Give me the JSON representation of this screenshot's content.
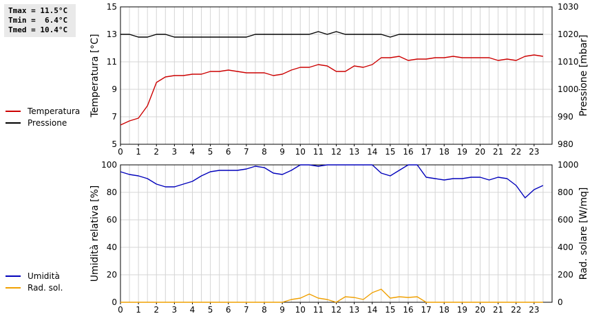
{
  "stats": {
    "tmax": "Tmax = 11.5°C",
    "tmin": "Tmin =  6.4°C",
    "tmed": "Tmed = 10.4°C"
  },
  "chart_data": [
    {
      "type": "line",
      "x_ticks": [
        "0",
        "1",
        "2",
        "3",
        "4",
        "5",
        "6",
        "7",
        "8",
        "9",
        "10",
        "11",
        "12",
        "13",
        "14",
        "15",
        "16",
        "17",
        "18",
        "19",
        "20",
        "21",
        "22",
        "23"
      ],
      "xlim": [
        0,
        24
      ],
      "ylabel_left": "Temperatura [°C]",
      "ylabel_right": "Pressione [mbar]",
      "ylim_left": [
        5,
        15
      ],
      "yticks_left": [
        "5",
        "7",
        "9",
        "11",
        "13",
        "15"
      ],
      "ylim_right": [
        980,
        1030
      ],
      "yticks_right": [
        "980",
        "990",
        "1000",
        "1010",
        "1020",
        "1030"
      ],
      "grid": true,
      "legend_position": "left",
      "series": [
        {
          "name": "Temperatura",
          "axis": "left",
          "color": "#cc0000",
          "x": [
            0,
            0.5,
            1,
            1.5,
            2,
            2.5,
            3,
            3.5,
            4,
            4.5,
            5,
            5.5,
            6,
            6.5,
            7,
            7.5,
            8,
            8.5,
            9,
            9.5,
            10,
            10.5,
            11,
            11.5,
            12,
            12.5,
            13,
            13.5,
            14,
            14.5,
            15,
            15.5,
            16,
            16.5,
            17,
            17.5,
            18,
            18.5,
            19,
            19.5,
            20,
            20.5,
            21,
            21.5,
            22,
            22.5,
            23,
            23.5
          ],
          "y": [
            6.4,
            6.7,
            6.9,
            7.8,
            9.5,
            9.9,
            10.0,
            10.0,
            10.1,
            10.1,
            10.3,
            10.3,
            10.4,
            10.3,
            10.2,
            10.2,
            10.2,
            10.0,
            10.1,
            10.4,
            10.6,
            10.6,
            10.8,
            10.7,
            10.3,
            10.3,
            10.7,
            10.6,
            10.8,
            11.3,
            11.3,
            11.4,
            11.1,
            11.2,
            11.2,
            11.3,
            11.3,
            11.4,
            11.3,
            11.3,
            11.3,
            11.3,
            11.1,
            11.2,
            11.1,
            11.4,
            11.5,
            11.4
          ]
        },
        {
          "name": "Pressione",
          "axis": "right",
          "color": "#000000",
          "x": [
            0,
            0.5,
            1,
            1.5,
            2,
            2.5,
            3,
            3.5,
            4,
            4.5,
            5,
            5.5,
            6,
            6.5,
            7,
            7.5,
            8,
            8.5,
            9,
            9.5,
            10,
            10.5,
            11,
            11.5,
            12,
            12.5,
            13,
            13.5,
            14,
            14.5,
            15,
            15.5,
            16,
            16.5,
            17,
            17.5,
            18,
            18.5,
            19,
            19.5,
            20,
            20.5,
            21,
            21.5,
            22,
            22.5,
            23,
            23.5
          ],
          "y": [
            1020,
            1020,
            1019,
            1019,
            1020,
            1020,
            1019,
            1019,
            1019,
            1019,
            1019,
            1019,
            1019,
            1019,
            1019,
            1020,
            1020,
            1020,
            1020,
            1020,
            1020,
            1020,
            1021,
            1020,
            1021,
            1020,
            1020,
            1020,
            1020,
            1020,
            1019,
            1020,
            1020,
            1020,
            1020,
            1020,
            1020,
            1020,
            1020,
            1020,
            1020,
            1020,
            1020,
            1020,
            1020,
            1020,
            1020,
            1020
          ]
        }
      ]
    },
    {
      "type": "line",
      "x_ticks": [
        "0",
        "1",
        "2",
        "3",
        "4",
        "5",
        "6",
        "7",
        "8",
        "9",
        "10",
        "11",
        "12",
        "13",
        "14",
        "15",
        "16",
        "17",
        "18",
        "19",
        "20",
        "21",
        "22",
        "23"
      ],
      "xlim": [
        0,
        24
      ],
      "ylabel_left": "Umidità relativa [%]",
      "ylabel_right": "Rad. solare [W/mq]",
      "ylim_left": [
        0,
        100
      ],
      "yticks_left": [
        "0",
        "20",
        "40",
        "60",
        "80",
        "100"
      ],
      "ylim_right": [
        0,
        1000
      ],
      "yticks_right": [
        "0",
        "200",
        "400",
        "600",
        "800",
        "1000"
      ],
      "grid": true,
      "legend_position": "left",
      "series": [
        {
          "name": "Umidità",
          "axis": "left",
          "color": "#0000bb",
          "x": [
            0,
            0.5,
            1,
            1.5,
            2,
            2.5,
            3,
            3.5,
            4,
            4.5,
            5,
            5.5,
            6,
            6.5,
            7,
            7.5,
            8,
            8.5,
            9,
            9.5,
            10,
            10.5,
            11,
            11.5,
            12,
            12.5,
            13,
            13.5,
            14,
            14.5,
            15,
            15.5,
            16,
            16.5,
            17,
            17.5,
            18,
            18.5,
            19,
            19.5,
            20,
            20.5,
            21,
            21.5,
            22,
            22.5,
            23,
            23.5
          ],
          "y": [
            95,
            93,
            92,
            90,
            86,
            84,
            84,
            86,
            88,
            92,
            95,
            96,
            96,
            96,
            97,
            99,
            98,
            94,
            93,
            96,
            100,
            100,
            99,
            100,
            100,
            100,
            100,
            100,
            100,
            94,
            92,
            96,
            100,
            100,
            91,
            90,
            89,
            90,
            90,
            91,
            91,
            89,
            91,
            90,
            85,
            76,
            82,
            85
          ]
        },
        {
          "name": "Rad. sol.",
          "axis": "right",
          "color": "#f0a000",
          "x": [
            0,
            0.5,
            1,
            1.5,
            2,
            2.5,
            3,
            3.5,
            4,
            4.5,
            5,
            5.5,
            6,
            6.5,
            7,
            7.5,
            8,
            8.5,
            9,
            9.5,
            10,
            10.5,
            11,
            11.5,
            12,
            12.5,
            13,
            13.5,
            14,
            14.5,
            15,
            15.5,
            16,
            16.5,
            17,
            17.5,
            18,
            18.5,
            19,
            19.5,
            20,
            20.5,
            21,
            21.5,
            22,
            22.5,
            23,
            23.5
          ],
          "y": [
            0,
            0,
            0,
            0,
            0,
            0,
            0,
            0,
            0,
            0,
            0,
            0,
            0,
            0,
            0,
            0,
            0,
            0,
            0,
            20,
            30,
            60,
            30,
            20,
            0,
            40,
            35,
            20,
            70,
            95,
            30,
            40,
            35,
            40,
            0,
            0,
            0,
            0,
            0,
            0,
            0,
            0,
            0,
            0,
            0,
            0,
            0,
            0
          ]
        }
      ]
    }
  ]
}
